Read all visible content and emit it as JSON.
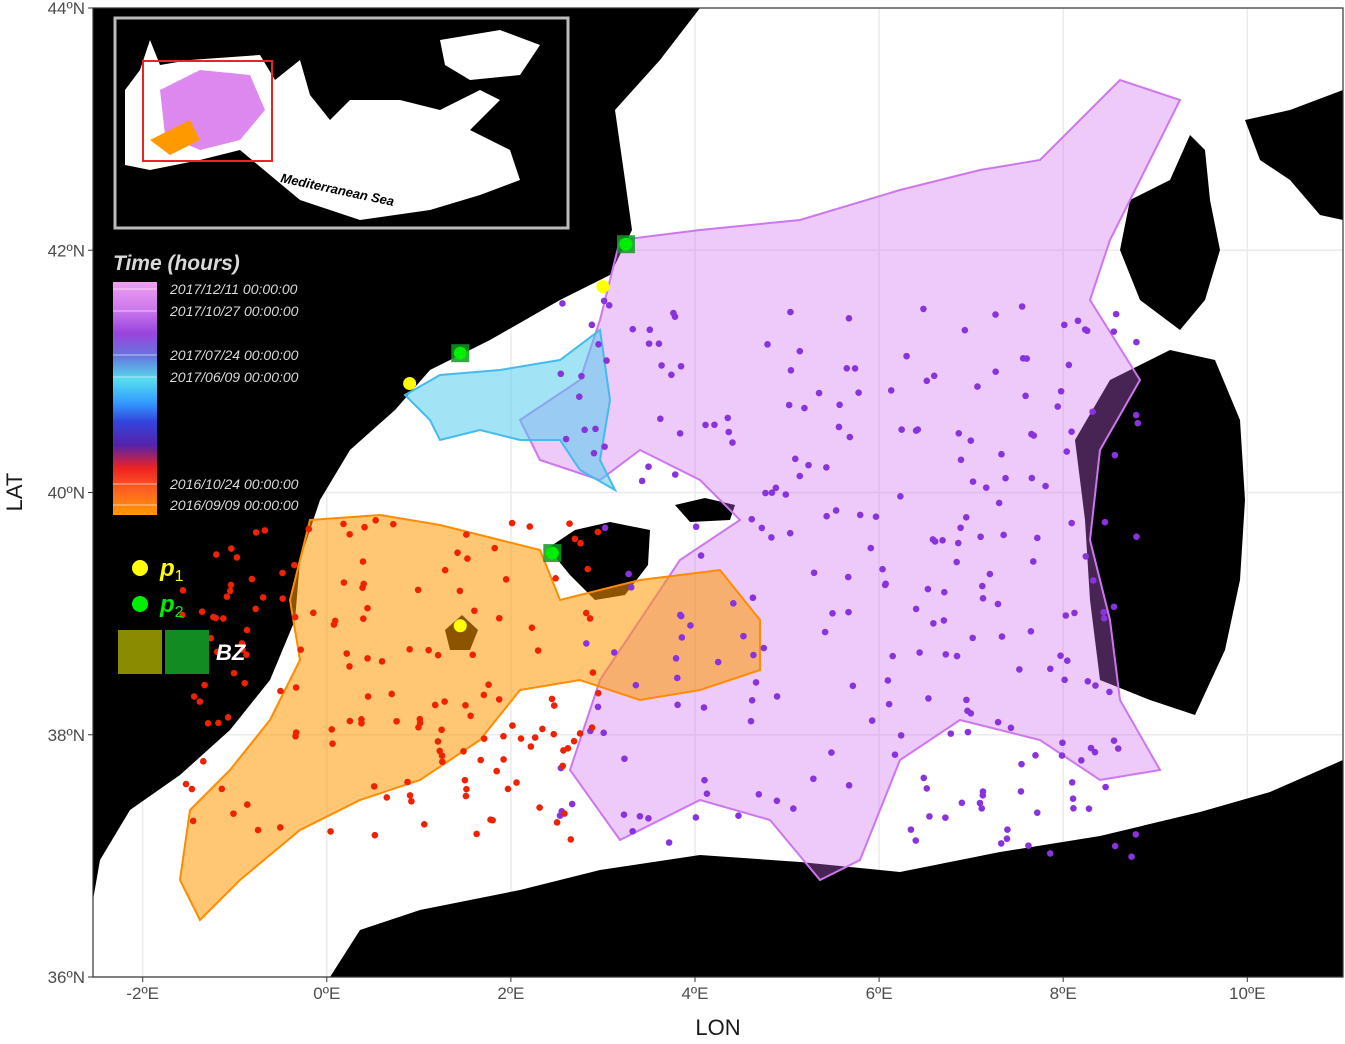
{
  "chart_data": {
    "type": "map",
    "xlabel": "LON",
    "ylabel": "LAT",
    "xlim": [
      -2.54,
      11.04
    ],
    "ylim": [
      36,
      44
    ],
    "xticks": [
      {
        "value": -2,
        "label": "-2ºE"
      },
      {
        "value": 0,
        "label": "0ºE"
      },
      {
        "value": 2,
        "label": "2ºE"
      },
      {
        "value": 4,
        "label": "4ºE"
      },
      {
        "value": 6,
        "label": "6ºE"
      },
      {
        "value": 8,
        "label": "8ºE"
      },
      {
        "value": 10,
        "label": "10ºE"
      }
    ],
    "yticks": [
      {
        "value": 36,
        "label": "36ºN"
      },
      {
        "value": 38,
        "label": "38ºN"
      },
      {
        "value": 40,
        "label": "40ºN"
      },
      {
        "value": 42,
        "label": "42ºN"
      },
      {
        "value": 44,
        "label": "44ºN"
      }
    ],
    "grid": true,
    "inset_label": "Mediterranean Sea",
    "colorbar": {
      "title": "Time (hours)",
      "labels": [
        "2017/12/11 00:00:00",
        "2017/10/27 00:00:00",
        "2017/07/24 00:00:00",
        "2017/06/09 00:00:00",
        "2016/10/24 00:00:00",
        "2016/09/09 00:00:00"
      ]
    },
    "series": [
      {
        "symbol": "p",
        "index": "1",
        "color": "#ffff00",
        "x": [
          0.9,
          3.0,
          1.45
        ],
        "y": [
          40.9,
          41.7,
          38.9
        ]
      },
      {
        "symbol": "p",
        "index": "2",
        "color": "#00ee00",
        "x": [
          3.25,
          1.45,
          2.45
        ],
        "y": [
          42.05,
          41.15,
          39.5
        ]
      }
    ],
    "zone_label": "BZ"
  }
}
